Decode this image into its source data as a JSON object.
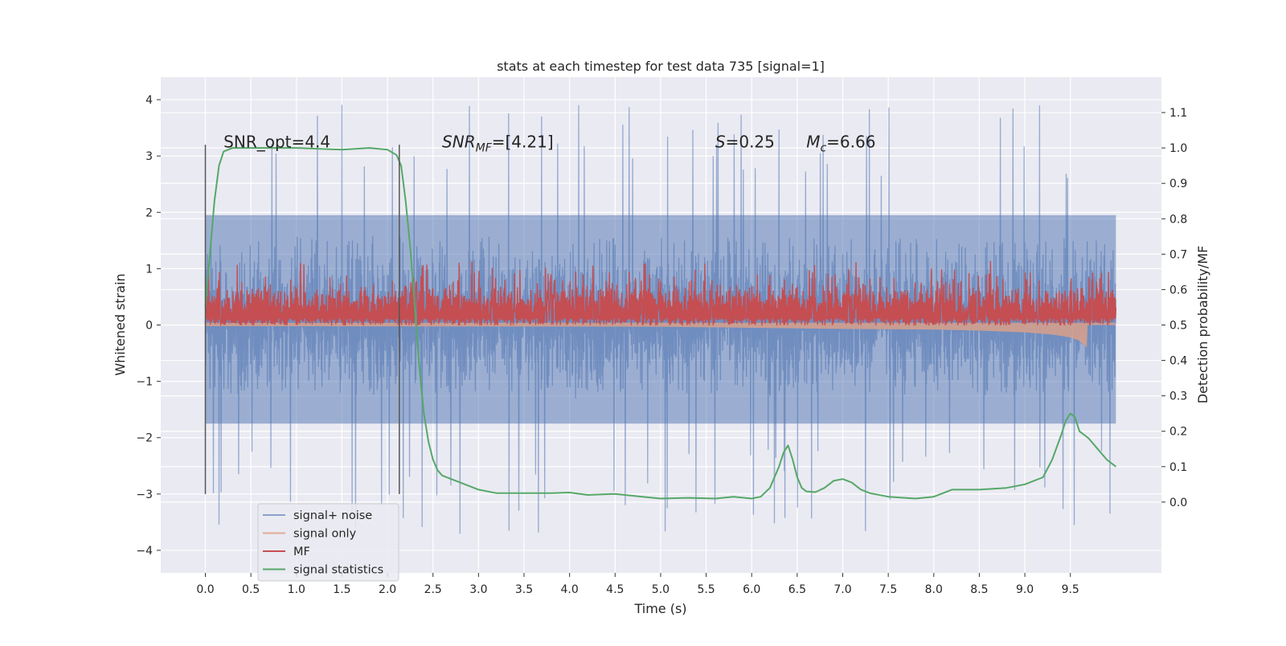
{
  "chart_data": {
    "type": "line",
    "title": "stats at each timestep for test data 735 [signal=1]",
    "xlabel": "Time (s)",
    "ylabel_left": "Whitened strain",
    "ylabel_right": "Detection probability/MF",
    "xlim": [
      -0.49,
      10.5
    ],
    "ylim_left": [
      -4.4,
      4.4
    ],
    "ylim_right": [
      -0.2,
      1.2
    ],
    "x_ticks": [
      0.0,
      0.5,
      1.0,
      1.5,
      2.0,
      2.5,
      3.0,
      3.5,
      4.0,
      4.5,
      5.0,
      5.5,
      6.0,
      6.5,
      7.0,
      7.5,
      8.0,
      8.5,
      9.0,
      9.5
    ],
    "x_tick_labels": [
      "0.0",
      "0.5",
      "1.0",
      "1.5",
      "2.0",
      "2.5",
      "3.0",
      "3.5",
      "4.0",
      "4.5",
      "5.0",
      "5.5",
      "6.0",
      "6.5",
      "7.0",
      "7.5",
      "8.0",
      "8.5",
      "9.0",
      "9.5"
    ],
    "y_left_ticks": [
      -4,
      -3,
      -2,
      -1,
      0,
      1,
      2,
      3,
      4
    ],
    "y_left_tick_labels": [
      "−4",
      "−3",
      "−2",
      "−1",
      "0",
      "1",
      "2",
      "3",
      "4"
    ],
    "y_right_ticks": [
      0.0,
      0.1,
      0.2,
      0.3,
      0.4,
      0.5,
      0.6,
      0.7,
      0.8,
      0.9,
      1.0,
      1.1
    ],
    "y_right_tick_labels": [
      "0.0",
      "0.1",
      "0.2",
      "0.3",
      "0.4",
      "0.5",
      "0.6",
      "0.7",
      "0.8",
      "0.9",
      "1.0",
      "1.1"
    ],
    "grid": true,
    "legend_position": "lower-left",
    "series": [
      {
        "name": "signal+ noise",
        "axis": "left",
        "color": "#4c72b0",
        "x_range": [
          0.0,
          10.0
        ],
        "typical_range": [
          -2.2,
          2.6
        ],
        "extremes": [
          -3.7,
          4.0
        ]
      },
      {
        "name": "signal only",
        "axis": "left",
        "color": "#dd8452",
        "x": [
          0.0,
          5.0,
          6.0,
          7.0,
          8.0,
          8.5,
          9.0,
          9.3,
          9.5,
          9.6,
          9.68,
          9.69,
          10.0
        ],
        "envelope": [
          0.02,
          0.03,
          0.05,
          0.07,
          0.08,
          0.1,
          0.13,
          0.17,
          0.22,
          0.28,
          0.4,
          0.0,
          0.0
        ]
      },
      {
        "name": "MF",
        "axis": "right",
        "color": "#c44e52",
        "x_range": [
          0.0,
          10.0
        ],
        "baseline": 0.5,
        "typical_range": [
          0.5,
          0.62
        ],
        "max": 0.68
      },
      {
        "name": "signal statistics",
        "axis": "right",
        "color": "#55a868",
        "x": [
          0.0,
          0.1,
          0.15,
          0.2,
          0.3,
          0.5,
          1.0,
          1.5,
          1.8,
          2.0,
          2.1,
          2.15,
          2.2,
          2.25,
          2.3,
          2.35,
          2.4,
          2.45,
          2.5,
          2.55,
          2.6,
          2.7,
          2.8,
          3.0,
          3.2,
          3.5,
          3.8,
          4.0,
          4.2,
          4.5,
          4.8,
          5.0,
          5.3,
          5.6,
          5.8,
          6.0,
          6.1,
          6.2,
          6.3,
          6.35,
          6.4,
          6.45,
          6.5,
          6.55,
          6.6,
          6.7,
          6.8,
          6.9,
          7.0,
          7.1,
          7.2,
          7.3,
          7.5,
          7.8,
          8.0,
          8.2,
          8.5,
          8.8,
          9.0,
          9.2,
          9.3,
          9.4,
          9.45,
          9.5,
          9.55,
          9.6,
          9.7,
          9.8,
          9.9,
          10.0
        ],
        "y": [
          0.55,
          0.85,
          0.95,
          0.99,
          1.0,
          1.0,
          1.0,
          0.995,
          1.0,
          0.995,
          0.98,
          0.95,
          0.85,
          0.72,
          0.55,
          0.38,
          0.25,
          0.17,
          0.12,
          0.09,
          0.075,
          0.065,
          0.055,
          0.035,
          0.025,
          0.025,
          0.025,
          0.027,
          0.02,
          0.023,
          0.015,
          0.01,
          0.012,
          0.01,
          0.015,
          0.01,
          0.015,
          0.04,
          0.1,
          0.14,
          0.16,
          0.12,
          0.07,
          0.04,
          0.03,
          0.028,
          0.04,
          0.06,
          0.065,
          0.055,
          0.035,
          0.025,
          0.015,
          0.01,
          0.015,
          0.035,
          0.035,
          0.04,
          0.05,
          0.07,
          0.12,
          0.19,
          0.23,
          0.25,
          0.24,
          0.2,
          0.18,
          0.15,
          0.12,
          0.1
        ]
      }
    ],
    "vertical_markers": [
      {
        "x": 0.0,
        "y_range": [
          -3.0,
          3.2
        ]
      },
      {
        "x": 2.13,
        "y_range": [
          -3.0,
          3.2
        ]
      }
    ],
    "annotations": [
      {
        "id": "snr-opt",
        "text": "SNR_opt=4.4",
        "x": 0.2,
        "y": 3.15
      },
      {
        "id": "snr-mf",
        "base": "SNR",
        "sub": "MF",
        "rest": "=[4.21]",
        "x": 2.6,
        "y": 3.15
      },
      {
        "id": "s-param",
        "base": "S",
        "rest": "=0.25",
        "x": 5.6,
        "y": 3.15
      },
      {
        "id": "mc-param",
        "base": "M",
        "sub": "c",
        "rest": "=6.66",
        "x": 6.6,
        "y": 3.15
      }
    ]
  }
}
